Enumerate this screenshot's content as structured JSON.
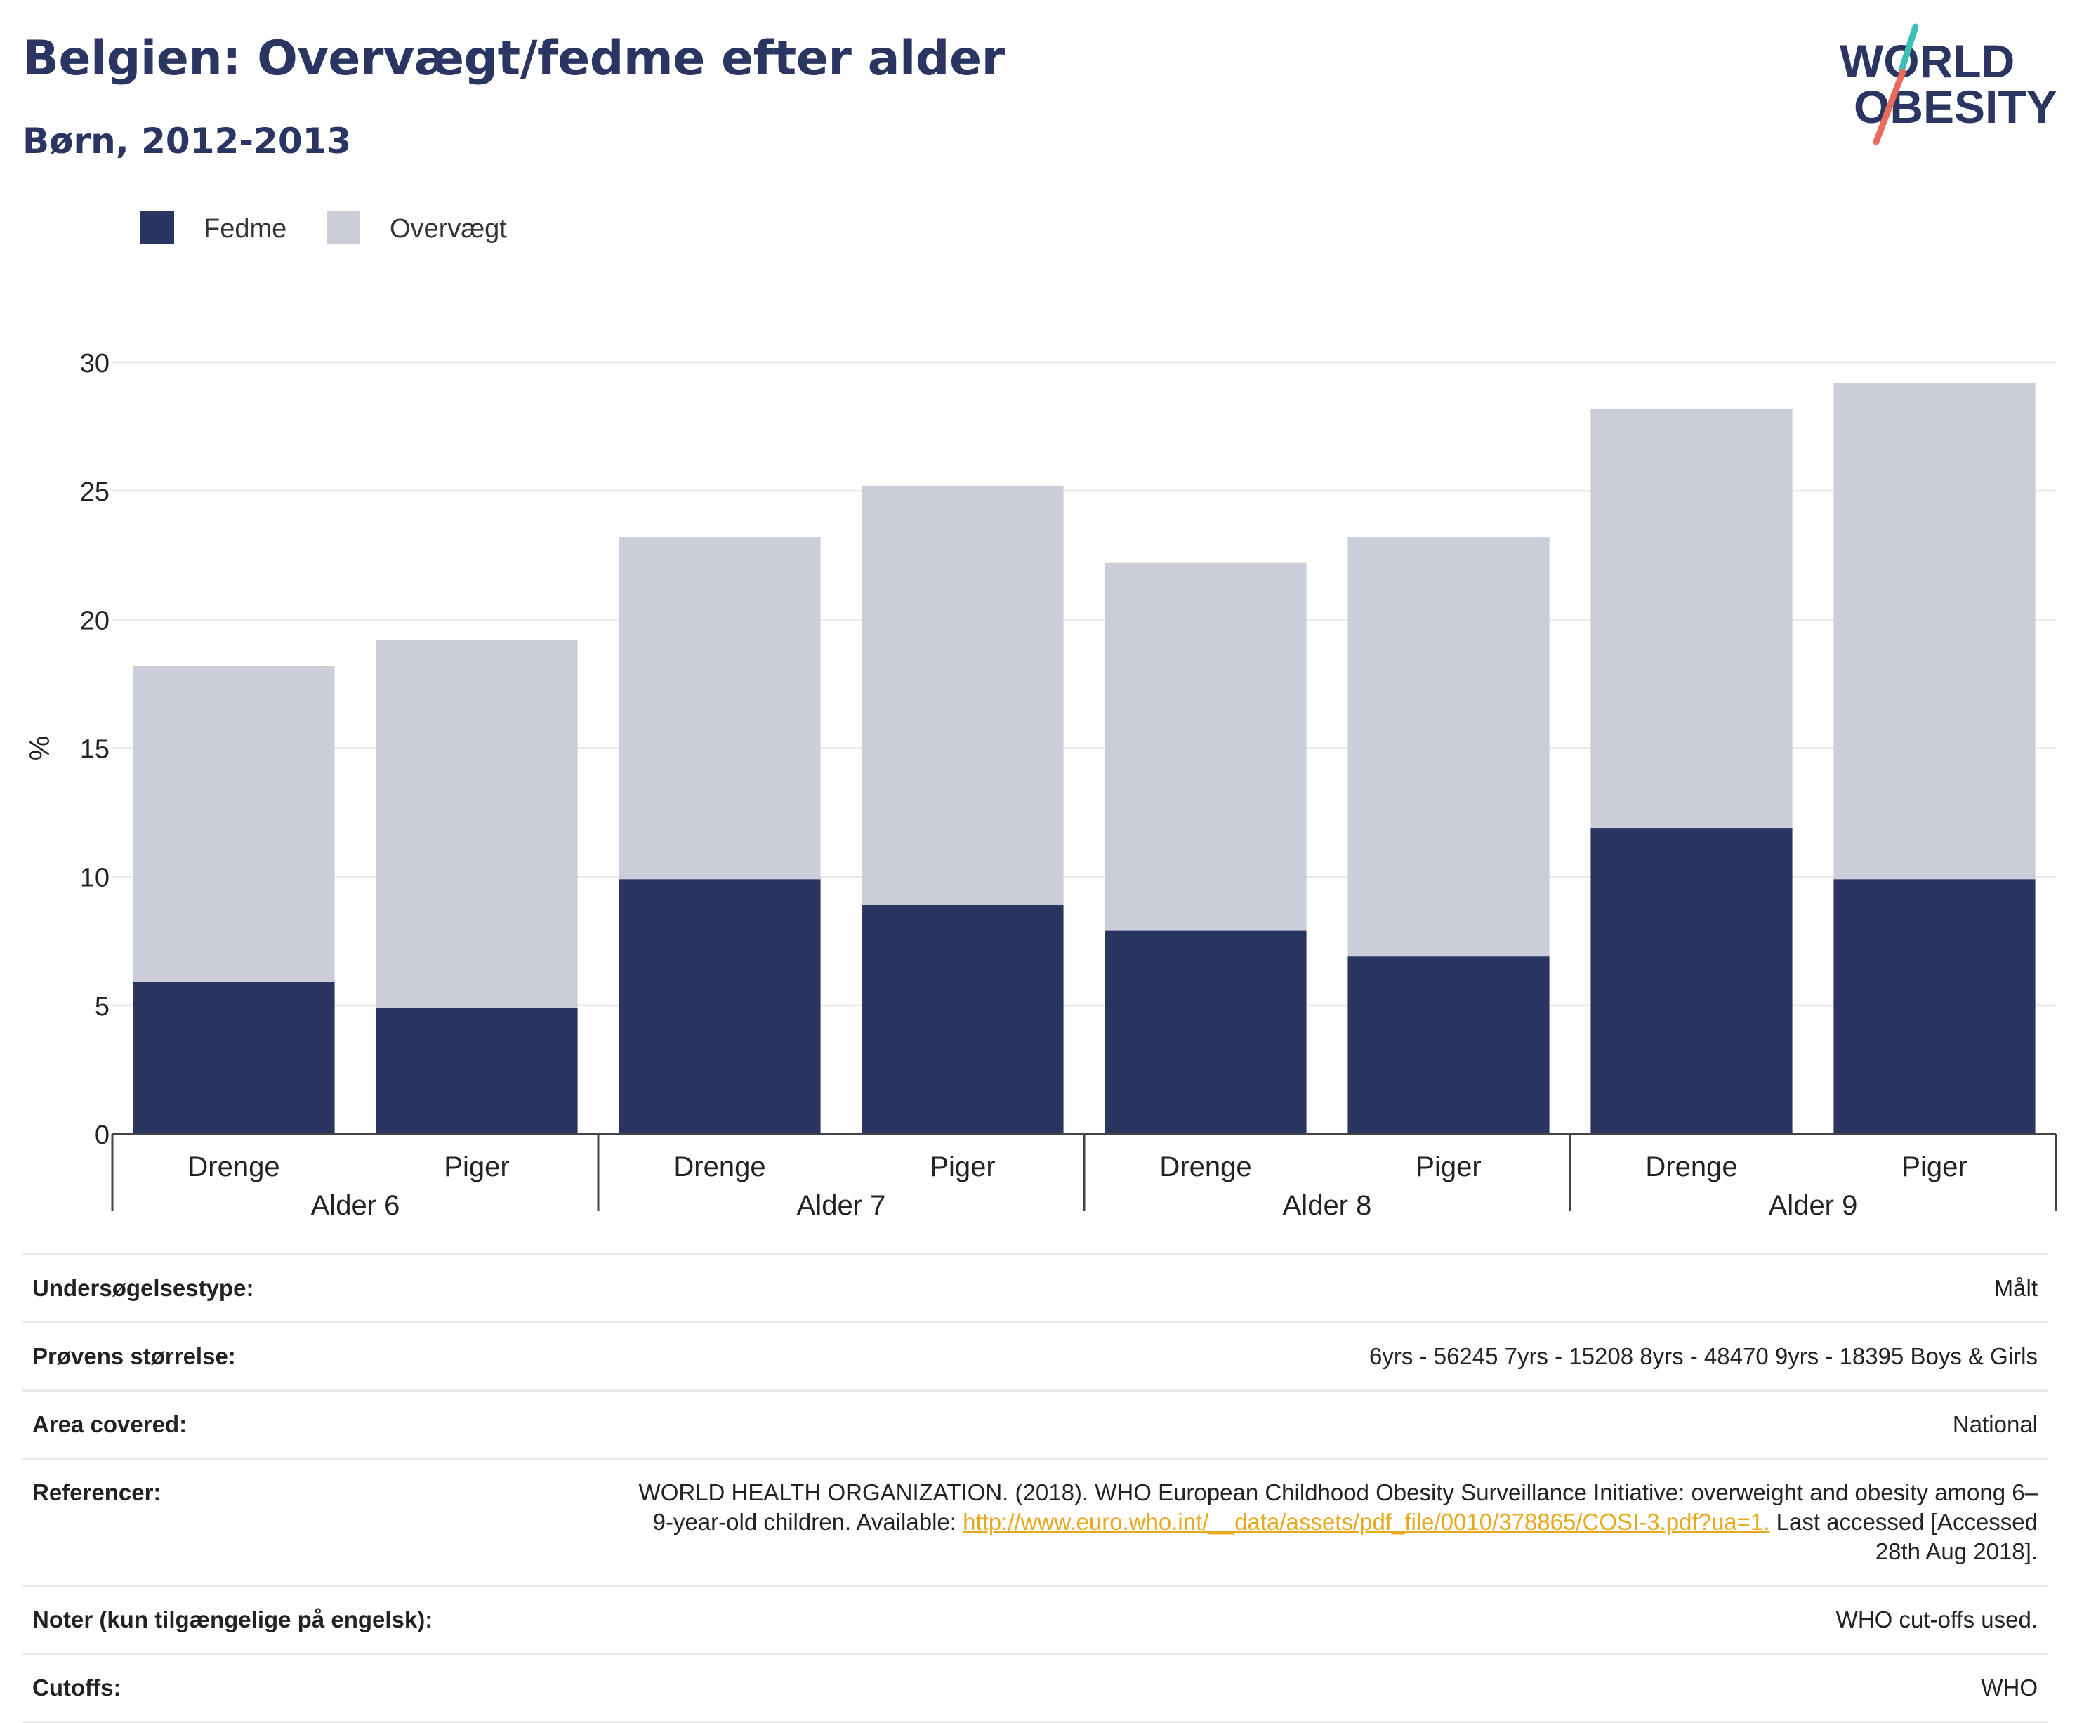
{
  "header": {
    "title": "Belgien: Overvægt/fedme efter alder",
    "subtitle": "Børn, 2012-2013"
  },
  "logo": {
    "line1": "WORLD",
    "line2": "OBESITY"
  },
  "colors": {
    "fedme": "#2a3561",
    "overvaegt": "#cbcdd9",
    "grid": "#ebebeb",
    "axis": "#444444",
    "text": "#2a3561",
    "link": "#e8a81e",
    "logo_teal": "#3bbfb7",
    "logo_red": "#e76c5c"
  },
  "chart_data": {
    "type": "bar",
    "stacked": true,
    "ylabel": "%",
    "ylim": [
      0,
      30
    ],
    "yticks": [
      0,
      5,
      10,
      15,
      20,
      25,
      30
    ],
    "grid": true,
    "legend_position": "top-left",
    "groups": [
      "Alder 6",
      "Alder 7",
      "Alder 8",
      "Alder 9"
    ],
    "subcategories": [
      "Drenge",
      "Piger"
    ],
    "categories": [
      "Drenge",
      "Piger",
      "Drenge",
      "Piger",
      "Drenge",
      "Piger",
      "Drenge",
      "Piger"
    ],
    "series": [
      {
        "name": "Fedme",
        "values": [
          5.9,
          4.9,
          9.9,
          8.9,
          7.9,
          6.9,
          11.9,
          9.9
        ]
      },
      {
        "name": "Overvægt",
        "values": [
          12.3,
          14.3,
          13.3,
          16.3,
          14.3,
          16.3,
          16.3,
          19.3
        ]
      }
    ]
  },
  "details": {
    "rows": [
      {
        "label": "Undersøgelsestype:",
        "value": "Målt"
      },
      {
        "label": "Prøvens størrelse:",
        "value": "6yrs - 56245 7yrs - 15208 8yrs - 48470 9yrs - 18395 Boys & Girls"
      },
      {
        "label": "Area covered:",
        "value": "National"
      },
      {
        "label": "Noter (kun tilgængelige på engelsk):",
        "value": "WHO cut-offs used."
      },
      {
        "label": "Cutoffs:",
        "value": "WHO"
      }
    ],
    "reference": {
      "label": "Referencer:",
      "text_before": "WORLD HEALTH ORGANIZATION. (2018). WHO European Childhood Obesity Surveillance Initiative: overweight and obesity among 6–9-year-old children. Available: ",
      "link": "http://www.euro.who.int/__data/assets/pdf_file/0010/378865/COSI-3.pdf?ua=1.",
      "text_after": " Last accessed [Accessed 28th Aug 2018]."
    }
  }
}
